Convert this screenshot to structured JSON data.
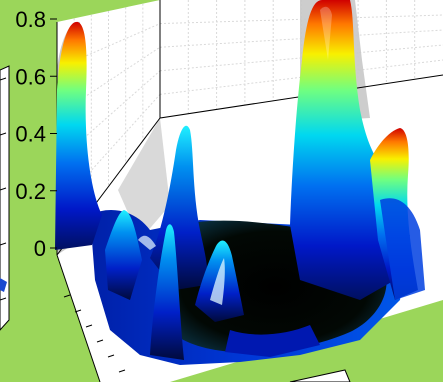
{
  "chart_data": {
    "type": "surface",
    "title": "",
    "xlabel": "",
    "ylabel": "",
    "zlabel": "",
    "zlim": [
      0,
      0.85
    ],
    "z_ticks": [
      "0",
      "0.2",
      "0.4",
      "0.6",
      "0.8"
    ],
    "grid": true,
    "colormap": "jet",
    "peaks": [
      {
        "label": "left-back ridge",
        "z": 0.8
      },
      {
        "label": "right-back ridge",
        "z": 0.85
      },
      {
        "label": "right-side ridge",
        "z": 0.35
      },
      {
        "label": "center-left spike",
        "z": 0.42
      },
      {
        "label": "center spike",
        "z": 0.18
      },
      {
        "label": "center-right bump",
        "z": 0.12
      },
      {
        "label": "left bump",
        "z": 0.12
      }
    ]
  },
  "colors": {
    "figure_background": "#9bd65a",
    "axes_background": "#ffffff",
    "grid": "#d9d9d9",
    "shadow": "#c8c8c8"
  }
}
